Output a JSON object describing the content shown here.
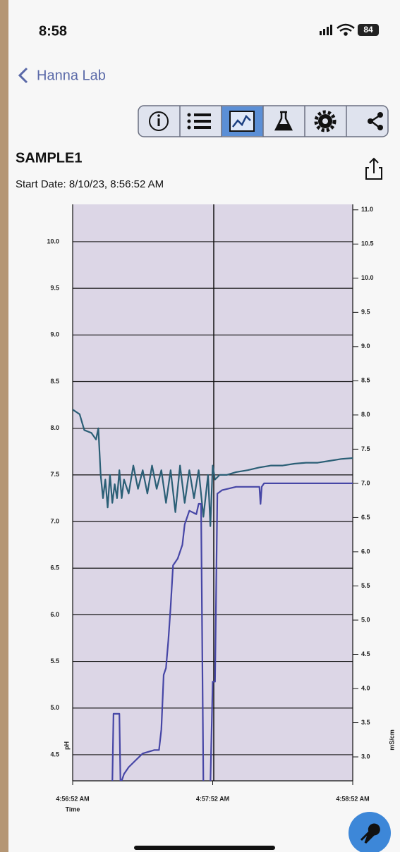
{
  "status_bar": {
    "time": "8:58",
    "battery": "84"
  },
  "nav": {
    "back": "Hanna Lab"
  },
  "sample": {
    "title": "SAMPLE1",
    "start_date": "Start Date: 8/10/23, 8:56:52 AM"
  },
  "chart_data": {
    "type": "line",
    "ylabel": "pH",
    "y2label": "mS/cm",
    "xlabel": "Time",
    "xlim": [
      0,
      120
    ],
    "xticks": [
      {
        "value": 0,
        "label": "4:56:52 AM"
      },
      {
        "value": 60,
        "label": "4:57:52 AM"
      },
      {
        "value": 120,
        "label": "4:58:52 AM"
      }
    ],
    "ylim": [
      4.22,
      10.4
    ],
    "yticks": [
      {
        "value": 4.5,
        "label": "4.5"
      },
      {
        "value": 5,
        "label": "5.0"
      },
      5.5,
      {
        "value": 6,
        "label": "6.0"
      },
      6.5,
      {
        "value": 7,
        "label": "7.0"
      },
      7.5,
      {
        "value": 8,
        "label": "8.0"
      },
      8.5,
      {
        "value": 9,
        "label": "9.0"
      },
      9.5,
      {
        "value": 10,
        "label": "10.0"
      }
    ],
    "y2lim": [
      2.65,
      11.08
    ],
    "y2ticks": [
      {
        "value": 3,
        "label": "3.0"
      },
      3.5,
      {
        "value": 4,
        "label": "4.0"
      },
      4.5,
      {
        "value": 5,
        "label": "5.0"
      },
      5.5,
      {
        "value": 6,
        "label": "6.0"
      },
      6.5,
      {
        "value": 7,
        "label": "7.0"
      },
      7.5,
      {
        "value": 8,
        "label": "8.0"
      },
      8.5,
      {
        "value": 9,
        "label": "9.0"
      },
      9.5,
      {
        "value": 10,
        "label": "10.0"
      },
      10.5,
      {
        "value": 11,
        "label": "11.0"
      }
    ],
    "grid": true,
    "series": [
      {
        "color": "#2b5f76",
        "axis": "y",
        "x": [
          0,
          3,
          5,
          8,
          10,
          11,
          12,
          13,
          14,
          15,
          16,
          17,
          18,
          19,
          20,
          21,
          22,
          24,
          26,
          28,
          30,
          32,
          34,
          36,
          38,
          40,
          42,
          44,
          46,
          48,
          50,
          52,
          54,
          56,
          58,
          59,
          60,
          61,
          63,
          66,
          70,
          75,
          80,
          85,
          90,
          95,
          100,
          105,
          110,
          115,
          120
        ],
        "values": [
          8.2,
          8.15,
          7.98,
          7.95,
          7.88,
          8.0,
          7.5,
          7.25,
          7.45,
          7.15,
          7.5,
          7.2,
          7.4,
          7.25,
          7.55,
          7.25,
          7.45,
          7.3,
          7.6,
          7.35,
          7.55,
          7.3,
          7.6,
          7.35,
          7.55,
          7.2,
          7.55,
          7.1,
          7.6,
          7.2,
          7.55,
          7.25,
          7.55,
          7.05,
          7.5,
          6.95,
          7.6,
          7.45,
          7.5,
          7.5,
          7.53,
          7.55,
          7.58,
          7.6,
          7.6,
          7.62,
          7.63,
          7.63,
          7.65,
          7.67,
          7.68
        ]
      },
      {
        "color": "#4646a6",
        "axis": "y2",
        "x": [
          17,
          17.5,
          20,
          20.5,
          22,
          24,
          27,
          30,
          35,
          37,
          38,
          39,
          40,
          41,
          42,
          43,
          45,
          47,
          48,
          50,
          53,
          54,
          55,
          56,
          57,
          59,
          60,
          61,
          62,
          64,
          70,
          80,
          80.5,
          81,
          82,
          90,
          100,
          120
        ],
        "values": [
          2.6,
          3.63,
          3.63,
          2.6,
          2.75,
          2.85,
          2.95,
          3.05,
          3.1,
          3.1,
          3.4,
          4.2,
          4.3,
          4.7,
          5.2,
          5.8,
          5.9,
          6.1,
          6.4,
          6.6,
          6.55,
          6.7,
          6.7,
          2.6,
          2.6,
          2.6,
          4.1,
          4.1,
          6.85,
          6.9,
          6.95,
          6.95,
          6.7,
          6.95,
          7.0,
          7.0,
          7.0,
          7.0
        ]
      }
    ]
  }
}
